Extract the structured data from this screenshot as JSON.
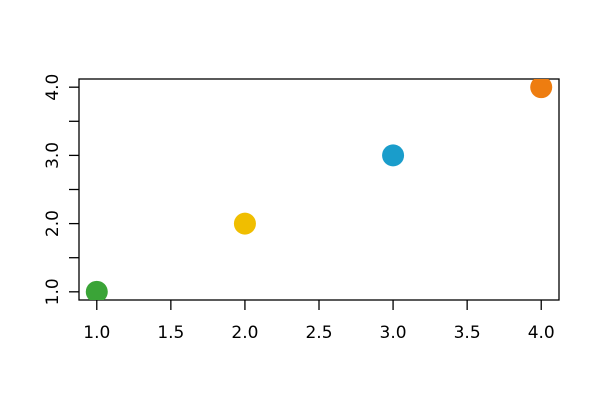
{
  "figure": {
    "background_color": "#ffffff",
    "axis_color": "#000000",
    "text_color": "#000000"
  },
  "chart_data": {
    "type": "scatter",
    "title": "",
    "xlabel": "",
    "ylabel": "",
    "xlim": [
      0.88,
      4.12
    ],
    "ylim": [
      0.88,
      4.12
    ],
    "grid": false,
    "legend": null,
    "frame": "box",
    "points": [
      {
        "x": 1.0,
        "y": 1.0,
        "color": "#3AA437"
      },
      {
        "x": 2.0,
        "y": 2.0,
        "color": "#F0BE00"
      },
      {
        "x": 3.0,
        "y": 3.0,
        "color": "#1A9DCB"
      },
      {
        "x": 4.0,
        "y": 4.0,
        "color": "#EE7D10"
      }
    ],
    "marker": {
      "shape": "filled-circle",
      "radius_px": 11
    },
    "x_ticks": [
      {
        "value": 1.0,
        "label": "1.0"
      },
      {
        "value": 1.5,
        "label": "1.5"
      },
      {
        "value": 2.0,
        "label": "2.0"
      },
      {
        "value": 2.5,
        "label": "2.5"
      },
      {
        "value": 3.0,
        "label": "3.0"
      },
      {
        "value": 3.5,
        "label": "3.5"
      },
      {
        "value": 4.0,
        "label": "4.0"
      }
    ],
    "y_ticks": [
      {
        "value": 1.0,
        "label": "1.0"
      },
      {
        "value": 1.5,
        "label": ""
      },
      {
        "value": 2.0,
        "label": "2.0"
      },
      {
        "value": 2.5,
        "label": ""
      },
      {
        "value": 3.0,
        "label": "3.0"
      },
      {
        "value": 3.5,
        "label": ""
      },
      {
        "value": 4.0,
        "label": "4.0"
      }
    ],
    "y_tick_label_rotation_deg": 90
  }
}
